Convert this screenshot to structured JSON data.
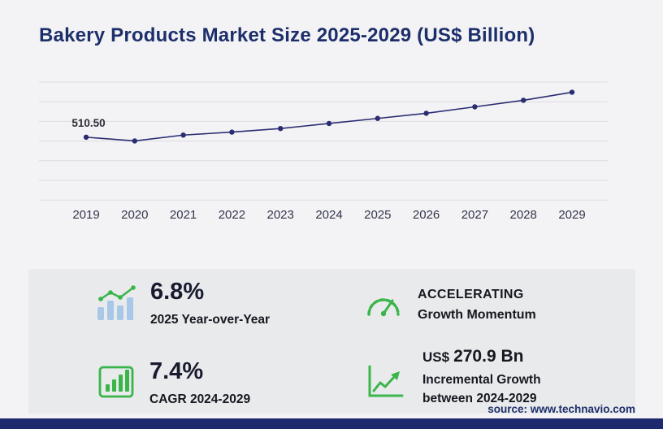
{
  "title": "Bakery Products Market Size 2025-2029 (US$ Billion)",
  "source": "source: www.technavio.com",
  "colors": {
    "title_navy": "#1d2f6b",
    "navy": "#2b2d72",
    "green": "#3ab54a",
    "light_blue": "#a9c7e6",
    "bottom_bar": "#1e2a6e",
    "card_bg": "#e9eaec",
    "page_bg": "#f3f3f5",
    "grid": "#dddde0"
  },
  "chart_data": {
    "type": "line",
    "title": "Bakery Products Market Size 2025-2029 (US$ Billion)",
    "x": [
      "2019",
      "2020",
      "2021",
      "2022",
      "2023",
      "2024",
      "2025",
      "2026",
      "2027",
      "2028",
      "2029"
    ],
    "series": [
      {
        "name": "Market size (US$ Billion)",
        "values": [
          510.5,
          478,
          529,
          555,
          586,
          630,
          674,
          719,
          775,
          832,
          902
        ]
      }
    ],
    "point_label": "510.50",
    "point_label_x": "2019",
    "xlabel": "",
    "ylabel": "",
    "ylim": [
      0,
      920
    ],
    "grid": "horizontal",
    "legend": "none"
  },
  "stats": [
    {
      "icon": "yoy-trend-icon",
      "value": "6.8%",
      "label": "2025 Year-over-Year"
    },
    {
      "icon": "speedometer-icon",
      "line1": "ACCELERATING",
      "line2": "Growth Momentum"
    },
    {
      "icon": "cagr-bars-icon",
      "value": "7.4%",
      "label": "CAGR 2024-2029"
    },
    {
      "icon": "incremental-growth-icon",
      "currency": "US$",
      "value": "270.9 Bn",
      "label1": "Incremental Growth",
      "label2": "between 2024-2029"
    }
  ]
}
